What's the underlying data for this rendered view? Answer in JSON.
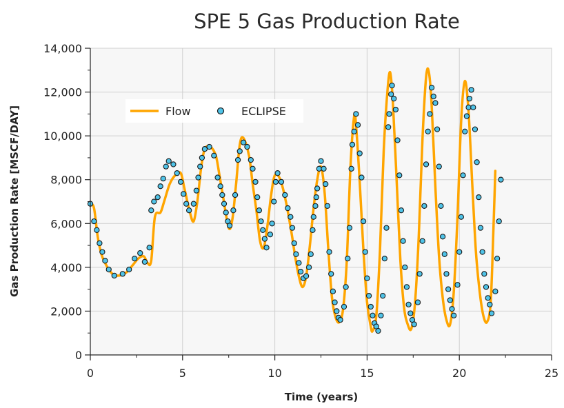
{
  "chart_data": {
    "type": "line",
    "title": "SPE 5 Gas Production Rate",
    "xlabel": "Time (years)",
    "ylabel": "Gas Production Rate [MSCF/DAY]",
    "xlim": [
      0,
      25
    ],
    "ylim": [
      0,
      14000
    ],
    "x_ticks": [
      0,
      5,
      10,
      15,
      20,
      25
    ],
    "x_tick_labels": [
      "0",
      "5",
      "10",
      "15",
      "20",
      "25"
    ],
    "y_ticks": [
      0,
      2000,
      4000,
      6000,
      8000,
      10000,
      12000,
      14000
    ],
    "y_tick_labels": [
      "0",
      "2,000",
      "4,000",
      "6,000",
      "8,000",
      "10,000",
      "12,000",
      "14,000"
    ],
    "grid": true,
    "legend": "upper-left",
    "colors": {
      "flow": "#ffa500",
      "eclipse": "#4fc3e8",
      "background": "#f7f7f7"
    },
    "series": [
      {
        "name": "Flow",
        "style": "line",
        "points": [
          [
            0,
            6900
          ],
          [
            0.2,
            6700
          ],
          [
            0.4,
            5400
          ],
          [
            0.6,
            4600
          ],
          [
            0.8,
            4200
          ],
          [
            1.0,
            3900
          ],
          [
            1.2,
            3700
          ],
          [
            1.4,
            3620
          ],
          [
            1.7,
            3650
          ],
          [
            2.0,
            3800
          ],
          [
            2.3,
            4100
          ],
          [
            2.6,
            4400
          ],
          [
            2.9,
            4500
          ],
          [
            3.1,
            4200
          ],
          [
            3.3,
            4300
          ],
          [
            3.5,
            6300
          ],
          [
            3.8,
            6500
          ],
          [
            4.0,
            7000
          ],
          [
            4.3,
            7800
          ],
          [
            4.6,
            8200
          ],
          [
            4.9,
            8300
          ],
          [
            5.1,
            7600
          ],
          [
            5.4,
            6500
          ],
          [
            5.6,
            6100
          ],
          [
            5.8,
            7000
          ],
          [
            6.0,
            8500
          ],
          [
            6.2,
            9400
          ],
          [
            6.5,
            9500
          ],
          [
            6.8,
            9100
          ],
          [
            7.0,
            8200
          ],
          [
            7.2,
            7200
          ],
          [
            7.5,
            5800
          ],
          [
            7.7,
            6200
          ],
          [
            7.9,
            7800
          ],
          [
            8.1,
            9600
          ],
          [
            8.3,
            9900
          ],
          [
            8.6,
            9100
          ],
          [
            8.8,
            7800
          ],
          [
            9.0,
            6600
          ],
          [
            9.2,
            5200
          ],
          [
            9.4,
            4900
          ],
          [
            9.6,
            5900
          ],
          [
            9.8,
            7300
          ],
          [
            10.0,
            8200
          ],
          [
            10.3,
            8000
          ],
          [
            10.6,
            7000
          ],
          [
            10.9,
            5600
          ],
          [
            11.1,
            4500
          ],
          [
            11.3,
            3600
          ],
          [
            11.5,
            3100
          ],
          [
            11.7,
            3600
          ],
          [
            11.9,
            5000
          ],
          [
            12.1,
            6700
          ],
          [
            12.3,
            8000
          ],
          [
            12.5,
            8600
          ],
          [
            12.7,
            7400
          ],
          [
            12.9,
            4800
          ],
          [
            13.1,
            2600
          ],
          [
            13.3,
            1700
          ],
          [
            13.5,
            1500
          ],
          [
            13.7,
            2100
          ],
          [
            13.9,
            4300
          ],
          [
            14.1,
            8600
          ],
          [
            14.3,
            10900
          ],
          [
            14.4,
            10500
          ],
          [
            14.6,
            7900
          ],
          [
            14.8,
            4800
          ],
          [
            15.0,
            2400
          ],
          [
            15.2,
            1300
          ],
          [
            15.3,
            1100
          ],
          [
            15.5,
            1800
          ],
          [
            15.7,
            4800
          ],
          [
            15.9,
            9300
          ],
          [
            16.1,
            12000
          ],
          [
            16.25,
            12900
          ],
          [
            16.4,
            11500
          ],
          [
            16.6,
            8000
          ],
          [
            16.8,
            4400
          ],
          [
            17.0,
            2200
          ],
          [
            17.2,
            1400
          ],
          [
            17.4,
            1200
          ],
          [
            17.6,
            2400
          ],
          [
            17.8,
            5400
          ],
          [
            18.0,
            9800
          ],
          [
            18.2,
            12700
          ],
          [
            18.35,
            12900
          ],
          [
            18.5,
            11400
          ],
          [
            18.7,
            7700
          ],
          [
            18.9,
            4500
          ],
          [
            19.1,
            2600
          ],
          [
            19.3,
            1600
          ],
          [
            19.5,
            1400
          ],
          [
            19.7,
            2900
          ],
          [
            19.9,
            6300
          ],
          [
            20.1,
            10700
          ],
          [
            20.3,
            12500
          ],
          [
            20.5,
            11100
          ],
          [
            20.7,
            7800
          ],
          [
            20.9,
            4700
          ],
          [
            21.1,
            2900
          ],
          [
            21.3,
            1800
          ],
          [
            21.5,
            1500
          ],
          [
            21.7,
            2400
          ],
          [
            21.85,
            5800
          ],
          [
            21.95,
            8400
          ]
        ]
      },
      {
        "name": "ECLIPSE",
        "style": "markers",
        "points": [
          [
            0,
            6900
          ],
          [
            0.2,
            6100
          ],
          [
            0.35,
            5700
          ],
          [
            0.5,
            5100
          ],
          [
            0.65,
            4700
          ],
          [
            0.8,
            4300
          ],
          [
            1.0,
            3900
          ],
          [
            1.3,
            3620
          ],
          [
            1.75,
            3700
          ],
          [
            2.1,
            3900
          ],
          [
            2.4,
            4400
          ],
          [
            2.7,
            4650
          ],
          [
            2.95,
            4250
          ],
          [
            3.2,
            4900
          ],
          [
            3.3,
            6600
          ],
          [
            3.45,
            7000
          ],
          [
            3.65,
            7200
          ],
          [
            3.8,
            7700
          ],
          [
            3.95,
            8050
          ],
          [
            4.1,
            8600
          ],
          [
            4.25,
            8850
          ],
          [
            4.5,
            8700
          ],
          [
            4.7,
            8300
          ],
          [
            4.9,
            7900
          ],
          [
            5.05,
            7350
          ],
          [
            5.2,
            6900
          ],
          [
            5.35,
            6600
          ],
          [
            5.6,
            6900
          ],
          [
            5.75,
            7500
          ],
          [
            5.85,
            8100
          ],
          [
            5.95,
            8600
          ],
          [
            6.05,
            9000
          ],
          [
            6.2,
            9400
          ],
          [
            6.45,
            9500
          ],
          [
            6.7,
            9100
          ],
          [
            6.9,
            8100
          ],
          [
            7.05,
            7700
          ],
          [
            7.15,
            7300
          ],
          [
            7.25,
            6900
          ],
          [
            7.35,
            6500
          ],
          [
            7.45,
            6100
          ],
          [
            7.55,
            5900
          ],
          [
            7.75,
            6600
          ],
          [
            7.85,
            7300
          ],
          [
            8.0,
            8900
          ],
          [
            8.1,
            9300
          ],
          [
            8.3,
            9700
          ],
          [
            8.5,
            9500
          ],
          [
            8.7,
            8900
          ],
          [
            8.8,
            8500
          ],
          [
            8.95,
            7900
          ],
          [
            9.05,
            7200
          ],
          [
            9.15,
            6600
          ],
          [
            9.25,
            6100
          ],
          [
            9.35,
            5700
          ],
          [
            9.45,
            5300
          ],
          [
            9.55,
            4900
          ],
          [
            9.75,
            5500
          ],
          [
            9.85,
            6000
          ],
          [
            9.95,
            7000
          ],
          [
            10.05,
            7900
          ],
          [
            10.15,
            8300
          ],
          [
            10.35,
            7900
          ],
          [
            10.55,
            7300
          ],
          [
            10.7,
            6700
          ],
          [
            10.85,
            6300
          ],
          [
            10.95,
            5800
          ],
          [
            11.05,
            5100
          ],
          [
            11.15,
            4600
          ],
          [
            11.3,
            4200
          ],
          [
            11.4,
            3800
          ],
          [
            11.55,
            3500
          ],
          [
            11.7,
            3600
          ],
          [
            11.85,
            4000
          ],
          [
            11.95,
            4600
          ],
          [
            12.05,
            5700
          ],
          [
            12.1,
            6300
          ],
          [
            12.2,
            6800
          ],
          [
            12.25,
            7200
          ],
          [
            12.3,
            7600
          ],
          [
            12.4,
            8500
          ],
          [
            12.5,
            8850
          ],
          [
            12.65,
            8500
          ],
          [
            12.75,
            7800
          ],
          [
            12.85,
            6800
          ],
          [
            12.95,
            4700
          ],
          [
            13.05,
            3700
          ],
          [
            13.15,
            2900
          ],
          [
            13.25,
            2400
          ],
          [
            13.35,
            2000
          ],
          [
            13.45,
            1700
          ],
          [
            13.55,
            1600
          ],
          [
            13.75,
            2200
          ],
          [
            13.85,
            3100
          ],
          [
            13.95,
            4400
          ],
          [
            14.05,
            5800
          ],
          [
            14.15,
            8500
          ],
          [
            14.2,
            9600
          ],
          [
            14.3,
            10200
          ],
          [
            14.4,
            11000
          ],
          [
            14.5,
            10500
          ],
          [
            14.6,
            9200
          ],
          [
            14.7,
            8100
          ],
          [
            14.8,
            6100
          ],
          [
            14.9,
            4700
          ],
          [
            15.0,
            3500
          ],
          [
            15.1,
            2700
          ],
          [
            15.2,
            2200
          ],
          [
            15.3,
            1800
          ],
          [
            15.4,
            1450
          ],
          [
            15.5,
            1300
          ],
          [
            15.6,
            1100
          ],
          [
            15.75,
            1800
          ],
          [
            15.85,
            2700
          ],
          [
            15.95,
            4400
          ],
          [
            16.05,
            5800
          ],
          [
            16.15,
            10400
          ],
          [
            16.2,
            11000
          ],
          [
            16.3,
            11900
          ],
          [
            16.35,
            12300
          ],
          [
            16.45,
            11700
          ],
          [
            16.55,
            11200
          ],
          [
            16.65,
            9800
          ],
          [
            16.75,
            8200
          ],
          [
            16.85,
            6600
          ],
          [
            16.95,
            5200
          ],
          [
            17.05,
            4000
          ],
          [
            17.15,
            3100
          ],
          [
            17.25,
            2300
          ],
          [
            17.35,
            1900
          ],
          [
            17.45,
            1600
          ],
          [
            17.55,
            1400
          ],
          [
            17.75,
            2400
          ],
          [
            17.85,
            3700
          ],
          [
            18.0,
            5200
          ],
          [
            18.1,
            6800
          ],
          [
            18.2,
            8700
          ],
          [
            18.3,
            10200
          ],
          [
            18.4,
            11000
          ],
          [
            18.5,
            12200
          ],
          [
            18.6,
            11800
          ],
          [
            18.7,
            11500
          ],
          [
            18.8,
            10300
          ],
          [
            18.9,
            8600
          ],
          [
            19.0,
            6800
          ],
          [
            19.1,
            5400
          ],
          [
            19.2,
            4600
          ],
          [
            19.3,
            3700
          ],
          [
            19.4,
            3000
          ],
          [
            19.5,
            2500
          ],
          [
            19.6,
            2100
          ],
          [
            19.7,
            1800
          ],
          [
            19.9,
            3200
          ],
          [
            20.0,
            4700
          ],
          [
            20.1,
            6300
          ],
          [
            20.2,
            8200
          ],
          [
            20.3,
            10200
          ],
          [
            20.4,
            10900
          ],
          [
            20.5,
            11300
          ],
          [
            20.55,
            11700
          ],
          [
            20.65,
            12100
          ],
          [
            20.75,
            11300
          ],
          [
            20.85,
            10300
          ],
          [
            20.95,
            8800
          ],
          [
            21.05,
            7200
          ],
          [
            21.15,
            5800
          ],
          [
            21.25,
            4700
          ],
          [
            21.35,
            3700
          ],
          [
            21.45,
            3100
          ],
          [
            21.55,
            2600
          ],
          [
            21.65,
            2300
          ],
          [
            21.75,
            1900
          ],
          [
            21.95,
            2900
          ],
          [
            22.05,
            4400
          ],
          [
            22.15,
            6100
          ],
          [
            22.25,
            8000
          ]
        ]
      }
    ]
  }
}
